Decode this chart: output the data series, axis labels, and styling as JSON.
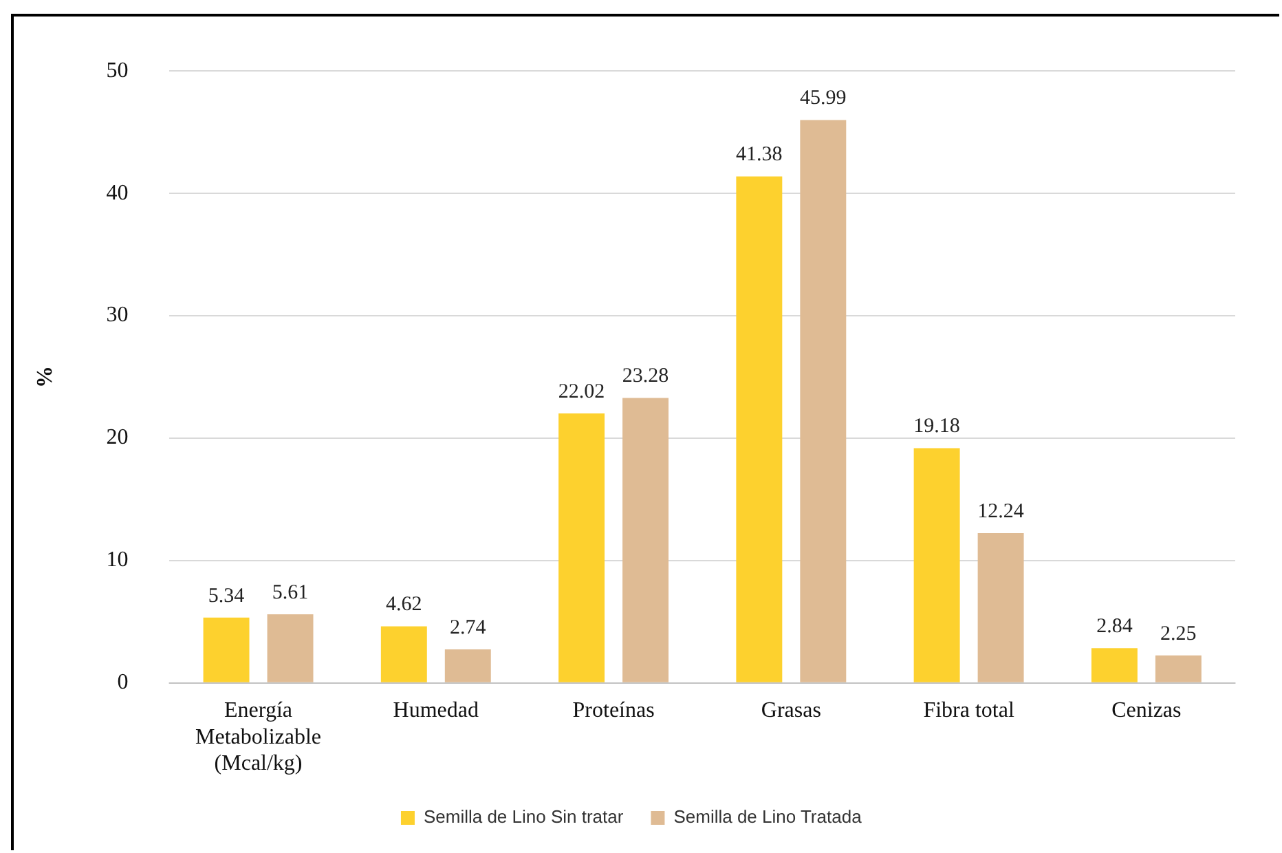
{
  "chart_data": {
    "type": "bar",
    "ylabel": "%",
    "categories": [
      "Energía Metabolizable (Mcal/kg)",
      "Humedad",
      "Proteínas",
      "Grasas",
      "Fibra total",
      "Cenizas"
    ],
    "series": [
      {
        "name": "Semilla de Lino Sin tratar",
        "color": "#fdd12e",
        "values": [
          5.34,
          4.62,
          22.02,
          41.38,
          19.18,
          2.84
        ]
      },
      {
        "name": "Semilla de Lino Tratada",
        "color": "#dfbb94",
        "values": [
          5.61,
          2.74,
          23.28,
          45.99,
          12.24,
          2.25
        ]
      }
    ],
    "ylim": [
      0,
      50
    ],
    "yticks": [
      0,
      10,
      20,
      30,
      40,
      50
    ],
    "grid": "y",
    "legend": "bottom",
    "data_labels": true
  }
}
